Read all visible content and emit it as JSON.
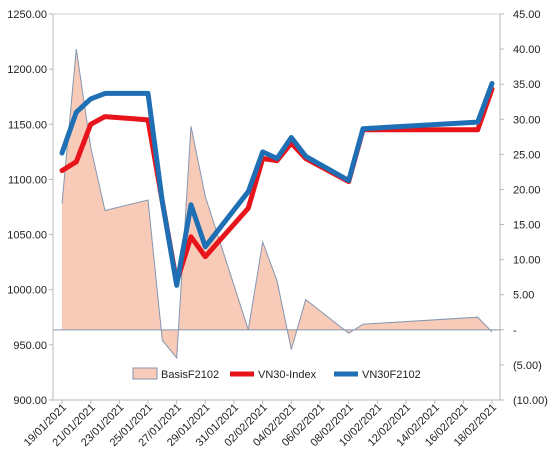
{
  "chart_data": {
    "type": "line",
    "title": "",
    "x": [
      "19/01/2021",
      "20/01/2021",
      "21/01/2021",
      "22/01/2021",
      "25/01/2021",
      "26/01/2021",
      "27/01/2021",
      "28/01/2021",
      "29/01/2021",
      "01/02/2021",
      "02/02/2021",
      "03/02/2021",
      "04/02/2021",
      "05/02/2021",
      "08/02/2021",
      "09/02/2021",
      "17/02/2021",
      "18/02/2021"
    ],
    "x_tick_labels": [
      "19/01/2021",
      "21/01/2021",
      "23/01/2021",
      "25/01/2021",
      "27/01/2021",
      "29/01/2021",
      "31/01/2021",
      "02/02/2021",
      "04/02/2021",
      "06/02/2021",
      "08/02/2021",
      "10/02/2021",
      "12/02/2021",
      "14/02/2021",
      "16/02/2021",
      "18/02/2021"
    ],
    "y_left": {
      "ylim": [
        900,
        1250
      ],
      "ticks": [
        "900.00",
        "950.00",
        "1000.00",
        "1050.00",
        "1100.00",
        "1150.00",
        "1200.00",
        "1250.00"
      ],
      "tick_values": [
        900,
        950,
        1000,
        1050,
        1100,
        1150,
        1200,
        1250
      ]
    },
    "y_right": {
      "ylim": [
        -10,
        45
      ],
      "ticks": [
        "(10.00)",
        "(5.00)",
        "-",
        "5.00",
        "10.00",
        "15.00",
        "20.00",
        "25.00",
        "30.00",
        "35.00",
        "40.00",
        "45.00"
      ],
      "tick_values": [
        -10,
        -5,
        0,
        5,
        10,
        15,
        20,
        25,
        30,
        35,
        40,
        45
      ]
    },
    "legend_position": "bottom",
    "series": [
      {
        "name": "BasisF2102",
        "type": "area",
        "axis": "right",
        "color": "#f8cbb8",
        "edge_color": "#8496b0",
        "x": [
          "19/01/2021",
          "20/01/2021",
          "21/01/2021",
          "22/01/2021",
          "25/01/2021",
          "26/01/2021",
          "27/01/2021",
          "28/01/2021",
          "29/01/2021",
          "01/02/2021",
          "02/02/2021",
          "03/02/2021",
          "04/02/2021",
          "05/02/2021",
          "08/02/2021",
          "09/02/2021",
          "17/02/2021",
          "18/02/2021"
        ],
        "values": [
          18.0,
          40.0,
          26.0,
          17.0,
          18.5,
          -1.5,
          -4.0,
          29.0,
          19.0,
          0.0,
          12.5,
          7.0,
          -2.8,
          4.3,
          -0.5,
          0.8,
          1.8,
          -0.3
        ]
      },
      {
        "name": "VN30-Index",
        "type": "line",
        "axis": "left",
        "color": "#e8141b",
        "x": [
          "19/01/2021",
          "20/01/2021",
          "21/01/2021",
          "22/01/2021",
          "25/01/2021",
          "26/01/2021",
          "27/01/2021",
          "28/01/2021",
          "29/01/2021",
          "01/02/2021",
          "02/02/2021",
          "03/02/2021",
          "04/02/2021",
          "05/02/2021",
          "08/02/2021",
          "09/02/2021",
          "17/02/2021",
          "18/02/2021"
        ],
        "values": [
          1108.0,
          1116.0,
          1150.0,
          1157.0,
          1154.0,
          1080.0,
          1007.0,
          1048.0,
          1030.0,
          1074.0,
          1119.0,
          1117.0,
          1133.0,
          1119.0,
          1098.0,
          1145.0,
          1145.0,
          1182.0
        ]
      },
      {
        "name": "VN30F2102",
        "type": "line",
        "axis": "left",
        "color": "#1f6fb4",
        "x": [
          "19/01/2021",
          "20/01/2021",
          "21/01/2021",
          "22/01/2021",
          "25/01/2021",
          "26/01/2021",
          "27/01/2021",
          "28/01/2021",
          "29/01/2021",
          "01/02/2021",
          "02/02/2021",
          "03/02/2021",
          "04/02/2021",
          "05/02/2021",
          "08/02/2021",
          "09/02/2021",
          "17/02/2021",
          "18/02/2021"
        ],
        "values": [
          1124.0,
          1161.0,
          1173.0,
          1178.0,
          1178.0,
          1080.0,
          1004.0,
          1077.0,
          1039.0,
          1089.0,
          1125.0,
          1119.0,
          1138.0,
          1121.0,
          1099.0,
          1146.0,
          1152.0,
          1187.0
        ]
      }
    ]
  }
}
